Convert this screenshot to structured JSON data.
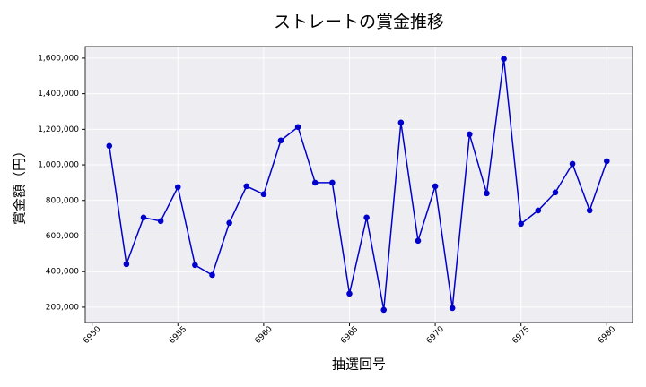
{
  "chart_data": {
    "type": "line",
    "title": "ストレートの賞金推移",
    "x_label": "抽選回号",
    "y_label": "賞金額（円）",
    "x": [
      6951,
      6952,
      6953,
      6954,
      6955,
      6956,
      6957,
      6958,
      6959,
      6960,
      6961,
      6962,
      6963,
      6964,
      6965,
      6966,
      6967,
      6968,
      6969,
      6970,
      6971,
      6972,
      6973,
      6974,
      6975,
      6976,
      6977,
      6978,
      6979,
      6980
    ],
    "series": [
      {
        "name": "賞金額",
        "color": "#0000cd",
        "values": [
          1107000,
          442000,
          704000,
          684000,
          875000,
          437000,
          381000,
          674000,
          880000,
          835000,
          1137000,
          1213000,
          900000,
          900000,
          276000,
          704000,
          185000,
          1238000,
          573000,
          880000,
          195000,
          1172000,
          840000,
          1596000,
          669000,
          744000,
          845000,
          1006000,
          744000,
          1021000
        ]
      }
    ],
    "xlim": [
      6949.6,
      6981.5
    ],
    "xticks": [
      6950,
      6955,
      6960,
      6965,
      6970,
      6975,
      6980
    ],
    "ylim": [
      114000,
      1665000
    ],
    "yticks": [
      {
        "value": 200000,
        "label": "200,000"
      },
      {
        "value": 400000,
        "label": "400,000"
      },
      {
        "value": 600000,
        "label": "600,000"
      },
      {
        "value": 800000,
        "label": "800,000"
      },
      {
        "value": 1000000,
        "label": "1,000,000"
      },
      {
        "value": 1200000,
        "label": "1,200,000"
      },
      {
        "value": 1400000,
        "label": "1,400,000"
      },
      {
        "value": 1600000,
        "label": "1,600,000"
      }
    ],
    "grid": true,
    "background": "#eeeef2"
  }
}
